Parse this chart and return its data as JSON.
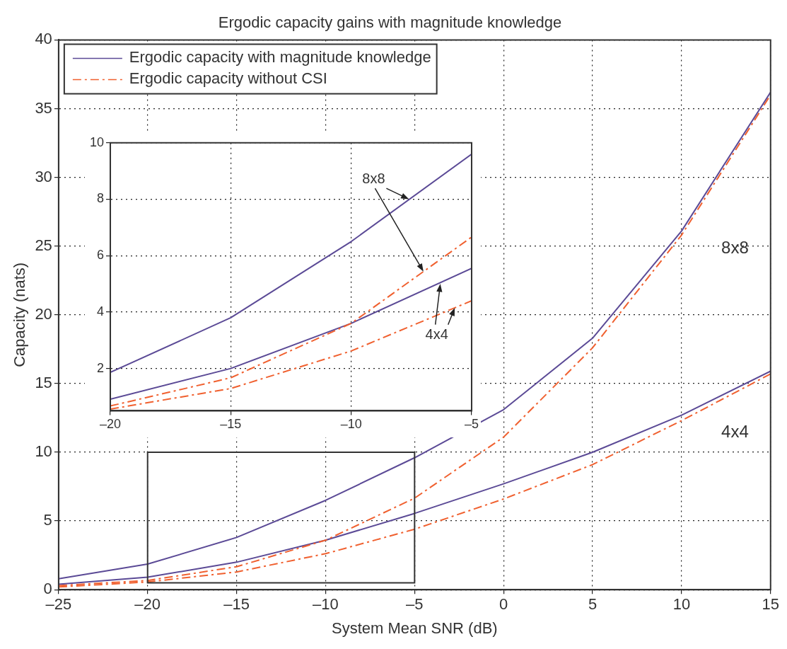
{
  "chart_data": [
    {
      "type": "line",
      "title": "Ergodic capacity gains with magnitude knowledge",
      "xlabel": "System Mean SNR (dB)",
      "ylabel": "Capacity (nats)",
      "x": [
        -25,
        -20,
        -15,
        -10,
        -5,
        0,
        5,
        10,
        15
      ],
      "series": [
        {
          "name": "Ergodic capacity with magnitude knowledge",
          "color": "#5b4a96",
          "line_style": "solid",
          "values": [
            0.8,
            1.86,
            3.8,
            6.5,
            9.6,
            13.1,
            18.3,
            26.1,
            36.2
          ]
        },
        {
          "name": "Ergodic capacity without CSI",
          "color": "#f0602f",
          "line_style": "dashed",
          "values": [
            0.3,
            0.67,
            1.67,
            3.6,
            6.66,
            11.1,
            17.6,
            25.8,
            36.0
          ]
        },
        {
          "color": "#5b4a96",
          "line_style": "solid",
          "values": [
            0.4,
            0.91,
            2.0,
            3.6,
            5.55,
            7.7,
            10.0,
            12.7,
            15.9
          ]
        },
        {
          "color": "#f0602f",
          "line_style": "dashed",
          "values": [
            0.2,
            0.56,
            1.29,
            2.62,
            4.4,
            6.6,
            9.1,
            12.3,
            15.7
          ]
        }
      ],
      "xlim": [
        -25,
        15
      ],
      "ylim": [
        0,
        40
      ],
      "xticks": [
        {
          "value": -25,
          "label": "–25"
        },
        {
          "value": -20,
          "label": "–20"
        },
        {
          "value": -15,
          "label": "–15"
        },
        {
          "value": -10,
          "label": "–10"
        },
        {
          "value": -5,
          "label": "–5"
        },
        0,
        5,
        10,
        15
      ],
      "yticks": [
        0,
        5,
        10,
        15,
        20,
        25,
        30,
        35,
        40
      ],
      "grid": true,
      "legend": "top left",
      "marker": "none",
      "annotations": [
        "8x8",
        "4x4"
      ]
    },
    {
      "type": "line",
      "x": [
        -20,
        -15,
        -10,
        -5
      ],
      "series": [
        {
          "color": "#5b4a96",
          "line_style": "solid",
          "values": [
            1.86,
            3.8,
            6.5,
            9.6
          ]
        },
        {
          "color": "#f0602f",
          "line_style": "dashed",
          "values": [
            0.67,
            1.67,
            3.6,
            6.66
          ]
        },
        {
          "color": "#5b4a96",
          "line_style": "solid",
          "values": [
            0.91,
            2.0,
            3.6,
            5.55
          ]
        },
        {
          "color": "#f0602f",
          "line_style": "dashed",
          "values": [
            0.56,
            1.29,
            2.62,
            4.4
          ]
        }
      ],
      "xlim": [
        -20,
        -5
      ],
      "ylim": [
        0.5,
        10
      ],
      "xticks": [
        {
          "value": -20,
          "label": "–20"
        },
        {
          "value": -15,
          "label": "–15"
        },
        {
          "value": -10,
          "label": "–10"
        },
        {
          "value": -5,
          "label": "–5"
        }
      ],
      "yticks": [
        2,
        4,
        6,
        8,
        10
      ],
      "grid": true,
      "marker": "none",
      "annotations": [
        {
          "text": "8x8",
          "x": -7.6,
          "y": 8.0
        },
        {
          "text": "4x4",
          "x": -6.3,
          "y": 5.0
        }
      ]
    }
  ]
}
